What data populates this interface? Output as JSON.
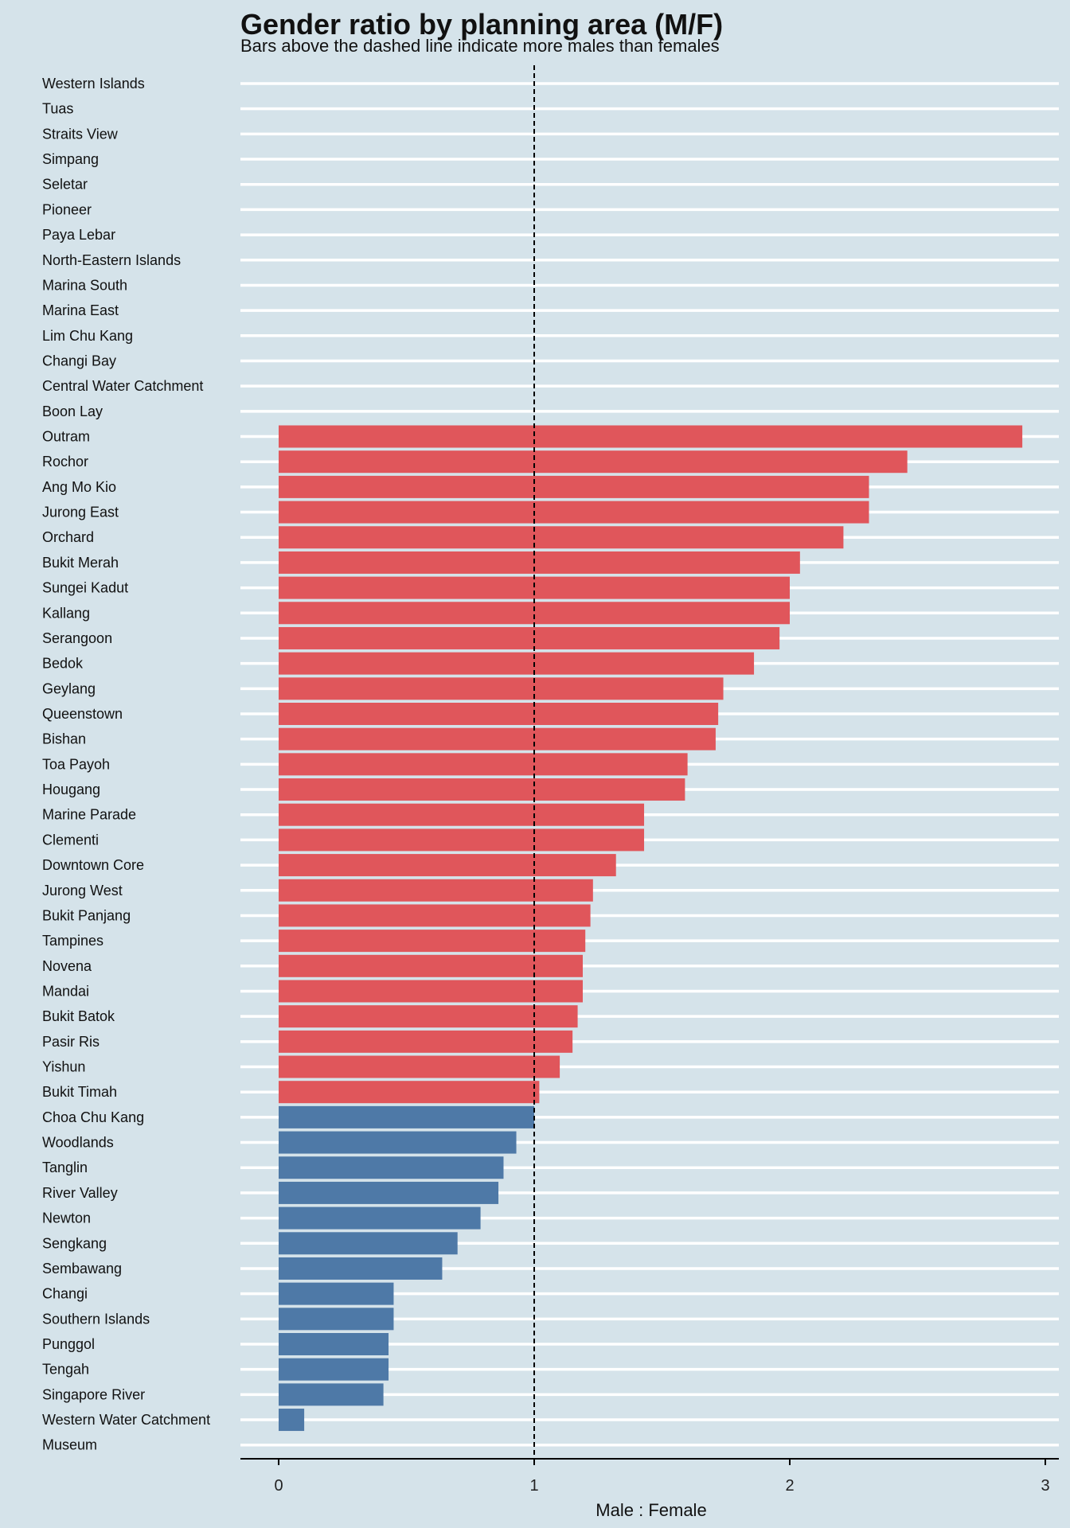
{
  "chart_data": {
    "type": "bar",
    "orientation": "horizontal",
    "title": "Gender ratio by planning area (M/F)",
    "subtitle": "Bars above the dashed line indicate more males than females",
    "xlabel": "Male : Female",
    "ylabel": "",
    "xlim": [
      0,
      3
    ],
    "xticks": [
      "0",
      "1",
      "2",
      "3"
    ],
    "reference_line": 1,
    "colors": {
      "above": "#e0565b",
      "below": "#4e79a7",
      "background": "#d5e3ea",
      "grid": "#ffffff"
    },
    "categories": [
      "Western Islands",
      "Tuas",
      "Straits View",
      "Simpang",
      "Seletar",
      "Pioneer",
      "Paya Lebar",
      "North-Eastern Islands",
      "Marina South",
      "Marina East",
      "Lim Chu Kang",
      "Changi Bay",
      "Central Water Catchment",
      "Boon Lay",
      "Outram",
      "Rochor",
      "Ang Mo Kio",
      "Jurong East",
      "Orchard",
      "Bukit Merah",
      "Sungei Kadut",
      "Kallang",
      "Serangoon",
      "Bedok",
      "Geylang",
      "Queenstown",
      "Bishan",
      "Toa Payoh",
      "Hougang",
      "Marine Parade",
      "Clementi",
      "Downtown Core",
      "Jurong West",
      "Bukit Panjang",
      "Tampines",
      "Novena",
      "Mandai",
      "Bukit Batok",
      "Pasir Ris",
      "Yishun",
      "Bukit Timah",
      "Choa Chu Kang",
      "Woodlands",
      "Tanglin",
      "River Valley",
      "Newton",
      "Sengkang",
      "Sembawang",
      "Changi",
      "Southern Islands",
      "Punggol",
      "Tengah",
      "Singapore River",
      "Western Water Catchment",
      "Museum"
    ],
    "values": [
      null,
      null,
      null,
      null,
      null,
      null,
      null,
      null,
      null,
      null,
      null,
      null,
      null,
      null,
      2.91,
      2.46,
      2.31,
      2.31,
      2.21,
      2.04,
      2.0,
      2.0,
      1.96,
      1.86,
      1.74,
      1.72,
      1.71,
      1.6,
      1.59,
      1.43,
      1.43,
      1.32,
      1.23,
      1.22,
      1.2,
      1.19,
      1.19,
      1.17,
      1.15,
      1.1,
      1.02,
      1.0,
      0.93,
      0.88,
      0.86,
      0.79,
      0.7,
      0.64,
      0.45,
      0.45,
      0.43,
      0.43,
      0.41,
      0.1,
      null
    ]
  }
}
